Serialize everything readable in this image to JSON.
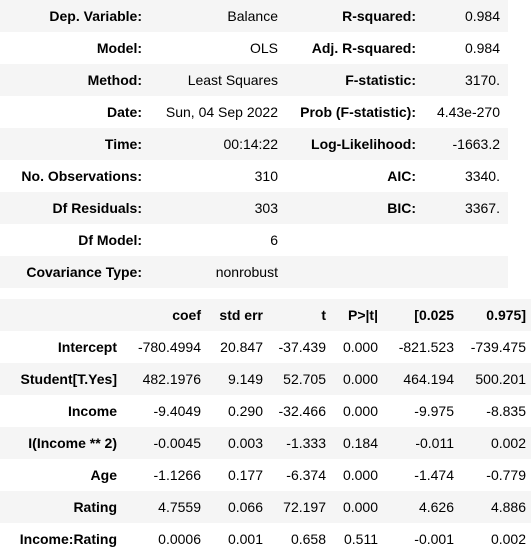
{
  "summary": {
    "rows": [
      {
        "l1": "Dep. Variable:",
        "v1": "Balance",
        "l2": "R-squared:",
        "v2": "0.984"
      },
      {
        "l1": "Model:",
        "v1": "OLS",
        "l2": "Adj. R-squared:",
        "v2": "0.984"
      },
      {
        "l1": "Method:",
        "v1": "Least Squares",
        "l2": "F-statistic:",
        "v2": "3170."
      },
      {
        "l1": "Date:",
        "v1": "Sun, 04 Sep 2022",
        "l2": "Prob (F-statistic):",
        "v2": "4.43e-270"
      },
      {
        "l1": "Time:",
        "v1": "00:14:22",
        "l2": "Log-Likelihood:",
        "v2": "-1663.2"
      },
      {
        "l1": "No. Observations:",
        "v1": "310",
        "l2": "AIC:",
        "v2": "3340."
      },
      {
        "l1": "Df Residuals:",
        "v1": "303",
        "l2": "BIC:",
        "v2": "3367."
      },
      {
        "l1": "Df Model:",
        "v1": "6",
        "l2": "",
        "v2": ""
      },
      {
        "l1": "Covariance Type:",
        "v1": "nonrobust",
        "l2": "",
        "v2": ""
      }
    ]
  },
  "coefs": {
    "headers": [
      "",
      "coef",
      "std err",
      "t",
      "P>|t|",
      "[0.025",
      "0.975]"
    ],
    "rows": [
      [
        "Intercept",
        "-780.4994",
        "20.847",
        "-37.439",
        "0.000",
        "-821.523",
        "-739.475"
      ],
      [
        "Student[T.Yes]",
        "482.1976",
        "9.149",
        "52.705",
        "0.000",
        "464.194",
        "500.201"
      ],
      [
        "Income",
        "-9.4049",
        "0.290",
        "-32.466",
        "0.000",
        "-9.975",
        "-8.835"
      ],
      [
        "I(Income ** 2)",
        "-0.0045",
        "0.003",
        "-1.333",
        "0.184",
        "-0.011",
        "0.002"
      ],
      [
        "Age",
        "-1.1266",
        "0.177",
        "-6.374",
        "0.000",
        "-1.474",
        "-0.779"
      ],
      [
        "Rating",
        "4.7559",
        "0.066",
        "72.197",
        "0.000",
        "4.626",
        "4.886"
      ],
      [
        "Income:Rating",
        "0.0006",
        "0.001",
        "0.658",
        "0.511",
        "-0.001",
        "0.002"
      ]
    ]
  }
}
